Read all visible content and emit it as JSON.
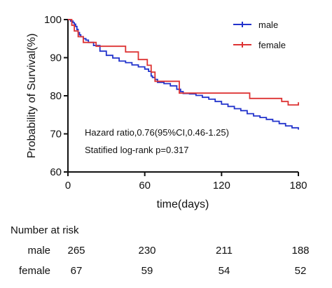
{
  "chart_data": {
    "type": "line",
    "subtype": "kaplan-meier step curve",
    "xlabel": "time(days)",
    "ylabel": "Probability of Survival(%)",
    "xlim": [
      0,
      180
    ],
    "ylim": [
      60,
      100
    ],
    "xticks": [
      0,
      60,
      120,
      180
    ],
    "yticks": [
      60,
      70,
      80,
      90,
      100
    ],
    "grid": false,
    "legend_position": "top-right",
    "series": [
      {
        "name": "male",
        "color": "#2233cc",
        "x": [
          0,
          2,
          4,
          5,
          6,
          7,
          8,
          9,
          10,
          12,
          14,
          16,
          20,
          25,
          30,
          35,
          40,
          45,
          50,
          55,
          60,
          63,
          65,
          66,
          68,
          70,
          75,
          80,
          85,
          88,
          90,
          95,
          100,
          105,
          110,
          115,
          120,
          125,
          130,
          135,
          140,
          145,
          150,
          155,
          160,
          165,
          170,
          175,
          180
        ],
        "y": [
          100,
          99.6,
          99.2,
          98.8,
          98.2,
          97.4,
          96.6,
          96,
          95.5,
          95,
          94.6,
          94,
          93.2,
          91.7,
          90.6,
          89.9,
          89.1,
          88.7,
          88.1,
          87.6,
          87,
          86.4,
          85.2,
          84.8,
          84.3,
          83.5,
          83.2,
          82.6,
          81.7,
          81.1,
          80.6,
          80.5,
          80.1,
          79.6,
          79.1,
          78.5,
          77.8,
          77.2,
          76.6,
          76.1,
          75.3,
          74.7,
          74.3,
          73.8,
          73.3,
          72.7,
          72.1,
          71.6,
          71.1
        ]
      },
      {
        "name": "female",
        "color": "#dd3333",
        "x": [
          0,
          3,
          5,
          8,
          12,
          22,
          45,
          55,
          62,
          65,
          68,
          87,
          142,
          167,
          172,
          180
        ],
        "y": [
          100,
          98.5,
          97,
          95.5,
          94,
          93,
          91.5,
          89.5,
          88,
          86.2,
          83.8,
          80.7,
          79.3,
          78.5,
          77.6,
          78.3
        ]
      }
    ],
    "annotations": [
      "Hazard ratio,0.76(95%CI,0.46-1.25)",
      "Statified log-rank p=0.317"
    ],
    "risk_table": {
      "title": "Number at risk",
      "rows": [
        {
          "label": "male",
          "values": [
            "265",
            "230",
            "211",
            "188"
          ]
        },
        {
          "label": "female",
          "values": [
            "67",
            "59",
            "54",
            "52"
          ]
        }
      ]
    }
  }
}
